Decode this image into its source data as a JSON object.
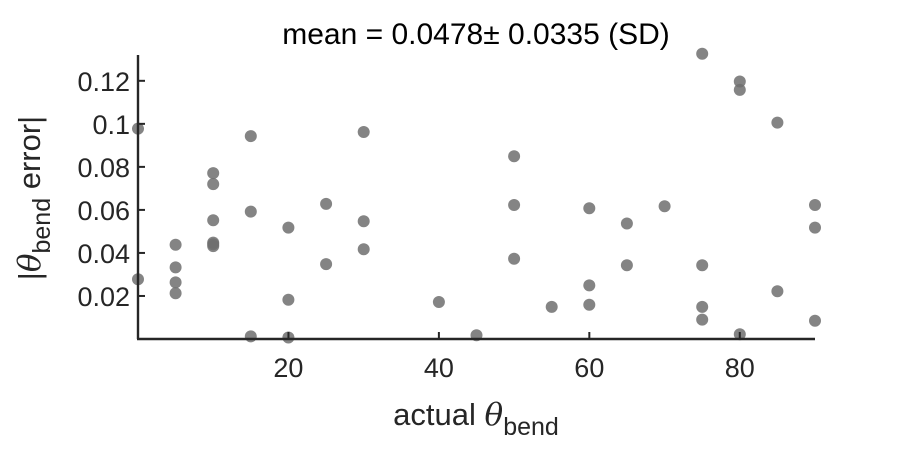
{
  "chart_data": {
    "type": "scatter",
    "title": "mean = 0.0478± 0.0335 (SD)",
    "xlabel": {
      "main": "actual ",
      "symbol": "θ",
      "subscript": "bend"
    },
    "ylabel": {
      "prefix": "|",
      "symbol": "θ",
      "subscript": "bend",
      "suffix": " error|"
    },
    "xlim": [
      0,
      90
    ],
    "ylim": [
      0,
      0.132
    ],
    "xticks": [
      20,
      40,
      60,
      80
    ],
    "xtick_labels": [
      "20",
      "40",
      "60",
      "80"
    ],
    "yticks": [
      0.02,
      0.04,
      0.06,
      0.08,
      0.1,
      0.12
    ],
    "ytick_labels": [
      "0.02",
      "0.04",
      "0.06",
      "0.08",
      "0.1",
      "0.12"
    ],
    "grid": false,
    "marker_color": "#6e6e6e",
    "axis_color": "#262626",
    "points": [
      {
        "x": 0,
        "y": 0.0978
      },
      {
        "x": 0,
        "y": 0.0278
      },
      {
        "x": 5,
        "y": 0.0438
      },
      {
        "x": 5,
        "y": 0.0333
      },
      {
        "x": 5,
        "y": 0.0263
      },
      {
        "x": 5,
        "y": 0.0213
      },
      {
        "x": 10,
        "y": 0.0771
      },
      {
        "x": 10,
        "y": 0.072
      },
      {
        "x": 10,
        "y": 0.0552
      },
      {
        "x": 10,
        "y": 0.0448
      },
      {
        "x": 10,
        "y": 0.044
      },
      {
        "x": 10,
        "y": 0.0432
      },
      {
        "x": 15,
        "y": 0.0943
      },
      {
        "x": 15,
        "y": 0.0592
      },
      {
        "x": 15,
        "y": 0.0012
      },
      {
        "x": 20,
        "y": 0.0518
      },
      {
        "x": 20,
        "y": 0.0182
      },
      {
        "x": 20,
        "y": 0.0007
      },
      {
        "x": 25,
        "y": 0.0628
      },
      {
        "x": 25,
        "y": 0.0348
      },
      {
        "x": 30,
        "y": 0.0962
      },
      {
        "x": 30,
        "y": 0.0547
      },
      {
        "x": 30,
        "y": 0.0417
      },
      {
        "x": 40,
        "y": 0.0172
      },
      {
        "x": 45,
        "y": 0.0017
      },
      {
        "x": 50,
        "y": 0.0849
      },
      {
        "x": 50,
        "y": 0.0623
      },
      {
        "x": 50,
        "y": 0.0373
      },
      {
        "x": 55,
        "y": 0.0149
      },
      {
        "x": 60,
        "y": 0.0608
      },
      {
        "x": 60,
        "y": 0.0249
      },
      {
        "x": 60,
        "y": 0.0159
      },
      {
        "x": 65,
        "y": 0.0537
      },
      {
        "x": 65,
        "y": 0.0343
      },
      {
        "x": 70,
        "y": 0.0617
      },
      {
        "x": 75,
        "y": 0.1326
      },
      {
        "x": 75,
        "y": 0.0343
      },
      {
        "x": 75,
        "y": 0.0149
      },
      {
        "x": 75,
        "y": 0.009
      },
      {
        "x": 80,
        "y": 0.1197
      },
      {
        "x": 80,
        "y": 0.1158
      },
      {
        "x": 80,
        "y": 0.0022
      },
      {
        "x": 85,
        "y": 0.1006
      },
      {
        "x": 85,
        "y": 0.0222
      },
      {
        "x": 90,
        "y": 0.0623
      },
      {
        "x": 90,
        "y": 0.0518
      },
      {
        "x": 90,
        "y": 0.0085
      }
    ]
  }
}
